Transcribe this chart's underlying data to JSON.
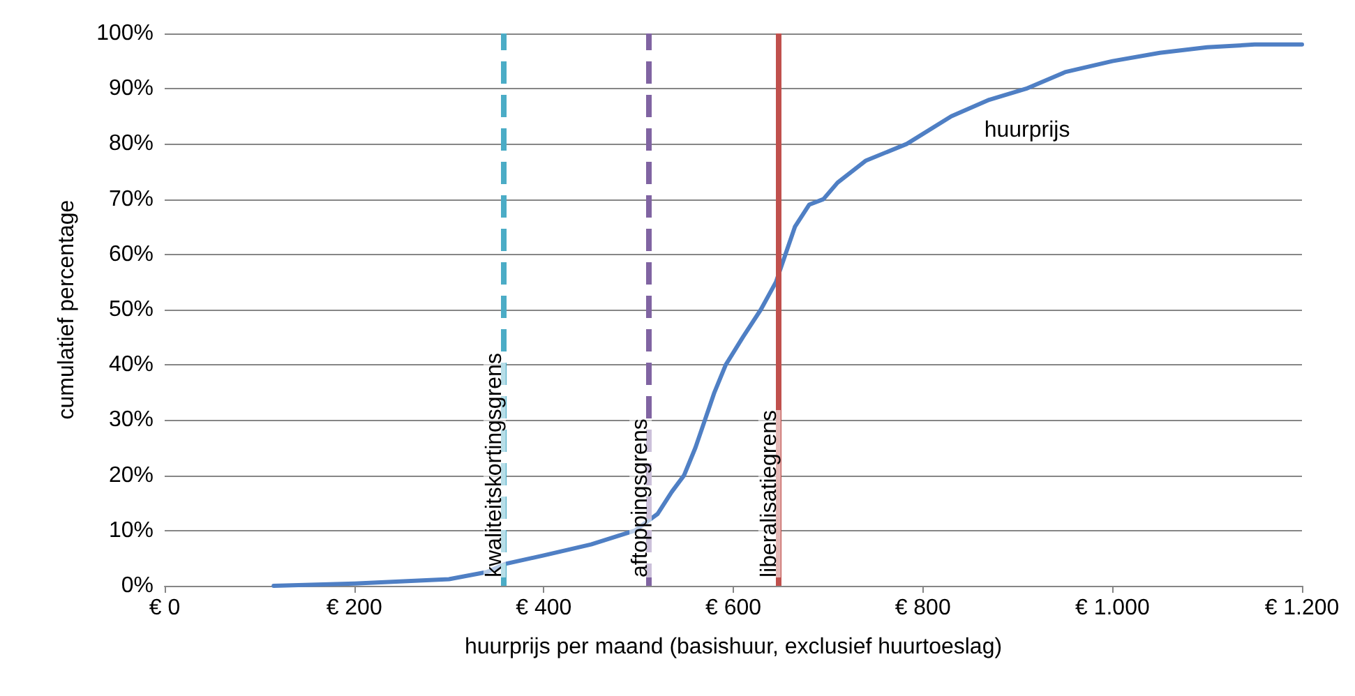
{
  "chart_data": {
    "type": "line",
    "xlabel": "huurprijs per maand (basishuur, exclusief huurtoeslag)",
    "ylabel": "cumulatief percentage",
    "series": [
      {
        "name": "huurprijs",
        "color": "#4f7fc4",
        "x": [
          115,
          200,
          300,
          340,
          360,
          400,
          450,
          496,
          520,
          535,
          548,
          560,
          570,
          580,
          592,
          610,
          629,
          645,
          655,
          665,
          680,
          695,
          710,
          740,
          783,
          830,
          870,
          909,
          950,
          1000,
          1050,
          1100,
          1150,
          1200
        ],
        "values": [
          0,
          0.4,
          1.2,
          2.5,
          4,
          5.5,
          7.5,
          10,
          13,
          17,
          20,
          25,
          30,
          35,
          40,
          45,
          50,
          55,
          60,
          65,
          69,
          70,
          73,
          77,
          80,
          85,
          88,
          90,
          93,
          95,
          96.5,
          97.5,
          98,
          98
        ]
      }
    ],
    "xlim": [
      0,
      1200
    ],
    "xticks": [
      {
        "value": 0,
        "label": "€ 0"
      },
      {
        "value": 200,
        "label": "€ 200"
      },
      {
        "value": 400,
        "label": "€ 400"
      },
      {
        "value": 600,
        "label": "€ 600"
      },
      {
        "value": 800,
        "label": "€ 800"
      },
      {
        "value": 1000,
        "label": "€ 1.000"
      },
      {
        "value": 1200,
        "label": "€ 1.200"
      }
    ],
    "ylim": [
      0,
      100
    ],
    "yticks": [
      {
        "value": 0,
        "label": "0%"
      },
      {
        "value": 10,
        "label": "10%"
      },
      {
        "value": 20,
        "label": "20%"
      },
      {
        "value": 30,
        "label": "30%"
      },
      {
        "value": 40,
        "label": "40%"
      },
      {
        "value": 50,
        "label": "50%"
      },
      {
        "value": 60,
        "label": "60%"
      },
      {
        "value": 70,
        "label": "70%"
      },
      {
        "value": 80,
        "label": "80%"
      },
      {
        "value": 90,
        "label": "90%"
      },
      {
        "value": 100,
        "label": "100%"
      }
    ],
    "ref_lines": [
      {
        "axis": "x",
        "value": 357,
        "label": "kwaliteitskortingsgrens",
        "color": "#4bacc6",
        "line_style": "dashed"
      },
      {
        "axis": "x",
        "value": 511,
        "label": "aftoppingsgrens",
        "color": "#8064a2",
        "line_style": "dashed"
      },
      {
        "axis": "x",
        "value": 647,
        "label": "liberalisatiegrens",
        "color": "#c0504d",
        "line_style": "solid"
      }
    ],
    "grid": "y",
    "legend": false,
    "marker": "none",
    "line_style": "solid"
  }
}
